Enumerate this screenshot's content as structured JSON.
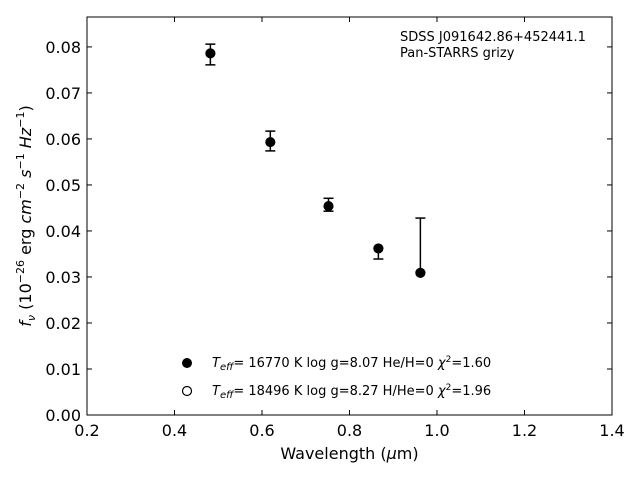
{
  "chart_data": {
    "type": "scatter",
    "xlabel": "Wavelength (μm)",
    "ylabel": "f_ν (10^−26 erg cm^−2 s^−1 Hz^−1)",
    "xlim": [
      0.2,
      1.4
    ],
    "ylim": [
      0.0,
      0.0865
    ],
    "x_ticks": [
      "0.2",
      "0.4",
      "0.6",
      "0.8",
      "1.0",
      "1.2",
      "1.4"
    ],
    "y_ticks": [
      "0.00",
      "0.01",
      "0.02",
      "0.03",
      "0.04",
      "0.05",
      "0.06",
      "0.07",
      "0.08"
    ],
    "annotations": [
      "SDSS J091642.86+452441.1",
      "Pan-STARRS grizy"
    ],
    "series": [
      {
        "name": "T_eff= 16770 K  log g=8.07  He/H=0  χ²=1.60",
        "marker": "filled",
        "x": [
          0.482,
          0.619,
          0.752,
          0.866,
          0.962
        ],
        "y": [
          0.0786,
          0.0593,
          0.0454,
          0.0362,
          0.0309
        ]
      },
      {
        "name": "T_eff= 18496 K  log g=8.27  H/He=0  χ²=1.96",
        "marker": "open",
        "x": [
          0.482,
          0.619,
          0.752,
          0.866,
          0.962
        ],
        "y": [
          0.0786,
          0.0593,
          0.0454,
          0.0362,
          0.0309
        ]
      }
    ],
    "observed": {
      "x": [
        0.482,
        0.619,
        0.752,
        0.866,
        0.962
      ],
      "y": [
        0.0783,
        0.0596,
        0.0453,
        0.0359,
        0.031
      ],
      "y_low": [
        0.0761,
        0.0574,
        0.0443,
        0.0339,
        0.031
      ],
      "y_high": [
        0.0806,
        0.0617,
        0.0471,
        0.0363,
        0.0428
      ]
    },
    "legend_position": "lower-center",
    "grid": false
  },
  "colors": {
    "marker": "#000000",
    "axis": "#000000",
    "background": "#ffffff"
  }
}
